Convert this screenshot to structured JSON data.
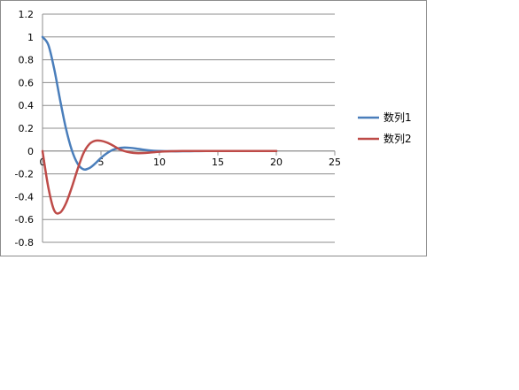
{
  "chart_data": {
    "type": "line",
    "title": "",
    "xlabel": "",
    "ylabel": "",
    "xlim": [
      0,
      25
    ],
    "ylim": [
      -0.8,
      1.2
    ],
    "x_ticks": [
      0,
      5,
      10,
      15,
      20,
      25
    ],
    "y_ticks": [
      1.2,
      1,
      0.8,
      0.6,
      0.4,
      0.2,
      0,
      -0.2,
      -0.4,
      -0.6,
      -0.8
    ],
    "x_tick_labels": [
      "0",
      "5",
      "10",
      "15",
      "20",
      "25"
    ],
    "y_tick_labels": [
      "1.2",
      "1",
      "0.8",
      "0.6",
      "0.4",
      "0.2",
      "0",
      "-0.2",
      "-0.4",
      "-0.6",
      "-0.8"
    ],
    "grid": "horizontal",
    "legend_position": "right",
    "x": [
      0,
      0.5,
      1,
      1.5,
      2,
      2.5,
      3,
      3.5,
      4,
      4.5,
      5,
      5.5,
      6,
      6.5,
      7,
      7.5,
      8,
      8.5,
      9,
      9.5,
      10,
      11,
      12,
      13,
      14,
      15,
      16,
      17,
      18,
      19,
      20
    ],
    "series": [
      {
        "name": "数列1",
        "color": "#4a7ebb",
        "values": [
          1.0,
          0.93,
          0.72,
          0.45,
          0.2,
          0.01,
          -0.11,
          -0.16,
          -0.15,
          -0.11,
          -0.06,
          -0.02,
          0.01,
          0.025,
          0.03,
          0.028,
          0.022,
          0.014,
          0.007,
          0.002,
          0.0,
          -0.002,
          -0.002,
          -0.001,
          0.0,
          0.0,
          0.0,
          0.0,
          0.0,
          0.0,
          0.0
        ]
      },
      {
        "name": "数列2",
        "color": "#be4b48",
        "values": [
          0.0,
          -0.32,
          -0.52,
          -0.54,
          -0.46,
          -0.32,
          -0.16,
          -0.02,
          0.06,
          0.09,
          0.09,
          0.075,
          0.05,
          0.02,
          0.0,
          -0.012,
          -0.018,
          -0.018,
          -0.015,
          -0.01,
          -0.006,
          -0.002,
          0.0,
          0.0,
          0.0,
          0.0,
          0.0,
          0.0,
          0.0,
          0.0,
          0.0
        ]
      }
    ]
  }
}
